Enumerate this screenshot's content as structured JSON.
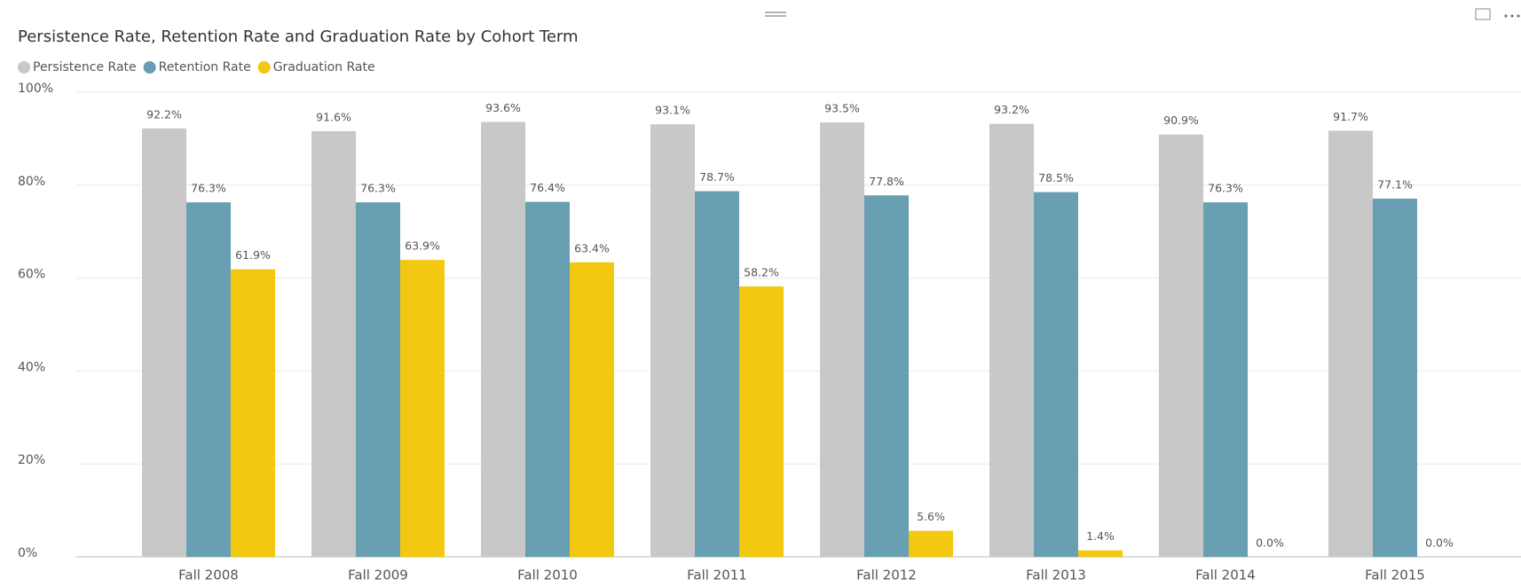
{
  "chart_data": {
    "type": "bar",
    "title": "Persistence Rate, Retention Rate and Graduation Rate by Cohort Term",
    "categories": [
      "Fall 2008",
      "Fall 2009",
      "Fall 2010",
      "Fall 2011",
      "Fall 2012",
      "Fall 2013",
      "Fall 2014",
      "Fall 2015"
    ],
    "series": [
      {
        "name": "Persistence Rate",
        "color": "#c8c8c8",
        "values": [
          92.2,
          91.6,
          93.6,
          93.1,
          93.5,
          93.2,
          90.9,
          91.7
        ],
        "value_labels": [
          "92.2%",
          "91.6%",
          "93.6%",
          "93.1%",
          "93.5%",
          "93.2%",
          "90.9%",
          "91.7%"
        ]
      },
      {
        "name": "Retention Rate",
        "color": "#689fb2",
        "values": [
          76.3,
          76.3,
          76.4,
          78.7,
          77.8,
          78.5,
          76.3,
          77.1
        ],
        "value_labels": [
          "76.3%",
          "76.3%",
          "76.4%",
          "78.7%",
          "77.8%",
          "78.5%",
          "76.3%",
          "77.1%"
        ]
      },
      {
        "name": "Graduation Rate",
        "color": "#f2c811",
        "values": [
          61.9,
          63.9,
          63.4,
          58.2,
          5.6,
          1.4,
          0.0,
          0.0
        ],
        "value_labels": [
          "61.9%",
          "63.9%",
          "63.4%",
          "58.2%",
          "5.6%",
          "1.4%",
          "0.0%",
          "0.0%"
        ]
      }
    ],
    "ylim": [
      0,
      100
    ],
    "yticks": [
      {
        "value": 0,
        "label": "0%"
      },
      {
        "value": 20,
        "label": "20%"
      },
      {
        "value": 40,
        "label": "40%"
      },
      {
        "value": 60,
        "label": "60%"
      },
      {
        "value": 80,
        "label": "80%"
      },
      {
        "value": 100,
        "label": "100%"
      }
    ],
    "grid": true,
    "legend": "top-left"
  }
}
